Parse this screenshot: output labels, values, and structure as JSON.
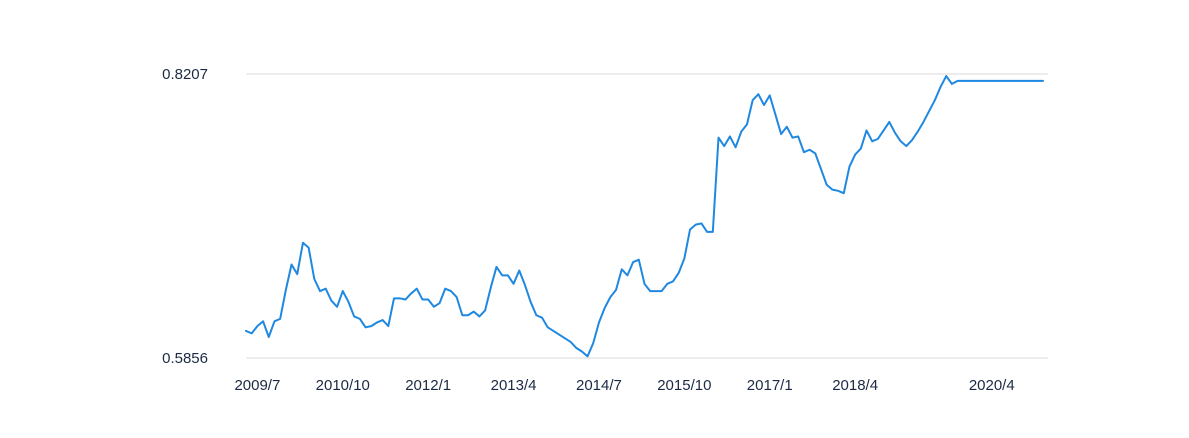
{
  "chart_data": {
    "type": "line",
    "title": "",
    "xlabel": "",
    "ylabel": "",
    "grid": true,
    "legend": "none",
    "ylim": [
      0.5856,
      0.8207
    ],
    "xlim": [
      "2009-05",
      "2021-01"
    ],
    "y_ticks": [
      {
        "value": 0.5856,
        "label": "0.5856"
      },
      {
        "value": 0.8207,
        "label": "0.8207"
      }
    ],
    "x_ticks": [
      {
        "value": "2009-07",
        "label": "2009/7"
      },
      {
        "value": "2010-10",
        "label": "2010/10"
      },
      {
        "value": "2012-01",
        "label": "2012/1"
      },
      {
        "value": "2013-04",
        "label": "2013/4"
      },
      {
        "value": "2014-07",
        "label": "2014/7"
      },
      {
        "value": "2015-10",
        "label": "2015/10"
      },
      {
        "value": "2017-01",
        "label": "2017/1"
      },
      {
        "value": "2018-04",
        "label": "2018/4"
      },
      {
        "value": "2020-04",
        "label": "2020/4"
      }
    ],
    "series": [
      {
        "color": "#1f88e0",
        "points": [
          [
            "2009-05",
            0.608
          ],
          [
            "2009-06",
            0.606
          ],
          [
            "2009-07",
            0.612
          ],
          [
            "2009-08",
            0.616
          ],
          [
            "2009-09",
            0.603
          ],
          [
            "2009-10",
            0.616
          ],
          [
            "2009-11",
            0.618
          ],
          [
            "2009-12",
            0.642
          ],
          [
            "2010-01",
            0.663
          ],
          [
            "2010-02",
            0.655
          ],
          [
            "2010-03",
            0.681
          ],
          [
            "2010-04",
            0.677
          ],
          [
            "2010-05",
            0.651
          ],
          [
            "2010-06",
            0.641
          ],
          [
            "2010-07",
            0.643
          ],
          [
            "2010-08",
            0.633
          ],
          [
            "2010-09",
            0.628
          ],
          [
            "2010-10",
            0.641
          ],
          [
            "2010-11",
            0.632
          ],
          [
            "2010-12",
            0.62
          ],
          [
            "2011-01",
            0.618
          ],
          [
            "2011-02",
            0.611
          ],
          [
            "2011-03",
            0.612
          ],
          [
            "2011-04",
            0.615
          ],
          [
            "2011-05",
            0.617
          ],
          [
            "2011-06",
            0.612
          ],
          [
            "2011-07",
            0.635
          ],
          [
            "2011-08",
            0.635
          ],
          [
            "2011-09",
            0.634
          ],
          [
            "2011-10",
            0.639
          ],
          [
            "2011-11",
            0.643
          ],
          [
            "2011-12",
            0.634
          ],
          [
            "2012-01",
            0.634
          ],
          [
            "2012-02",
            0.628
          ],
          [
            "2012-03",
            0.631
          ],
          [
            "2012-04",
            0.643
          ],
          [
            "2012-05",
            0.641
          ],
          [
            "2012-06",
            0.636
          ],
          [
            "2012-07",
            0.621
          ],
          [
            "2012-08",
            0.621
          ],
          [
            "2012-09",
            0.624
          ],
          [
            "2012-10",
            0.62
          ],
          [
            "2012-11",
            0.625
          ],
          [
            "2012-12",
            0.644
          ],
          [
            "2013-01",
            0.661
          ],
          [
            "2013-02",
            0.654
          ],
          [
            "2013-03",
            0.654
          ],
          [
            "2013-04",
            0.647
          ],
          [
            "2013-05",
            0.658
          ],
          [
            "2013-06",
            0.646
          ],
          [
            "2013-07",
            0.632
          ],
          [
            "2013-08",
            0.621
          ],
          [
            "2013-09",
            0.619
          ],
          [
            "2013-10",
            0.611
          ],
          [
            "2013-11",
            0.608
          ],
          [
            "2013-12",
            0.605
          ],
          [
            "2014-01",
            0.602
          ],
          [
            "2014-02",
            0.599
          ],
          [
            "2014-03",
            0.594
          ],
          [
            "2014-04",
            0.591
          ],
          [
            "2014-05",
            0.587
          ],
          [
            "2014-06",
            0.598
          ],
          [
            "2014-07",
            0.615
          ],
          [
            "2014-08",
            0.627
          ],
          [
            "2014-09",
            0.636
          ],
          [
            "2014-10",
            0.642
          ],
          [
            "2014-11",
            0.659
          ],
          [
            "2014-12",
            0.654
          ],
          [
            "2015-01",
            0.665
          ],
          [
            "2015-02",
            0.667
          ],
          [
            "2015-03",
            0.647
          ],
          [
            "2015-04",
            0.641
          ],
          [
            "2015-05",
            0.641
          ],
          [
            "2015-06",
            0.641
          ],
          [
            "2015-07",
            0.647
          ],
          [
            "2015-08",
            0.649
          ],
          [
            "2015-09",
            0.656
          ],
          [
            "2015-10",
            0.668
          ],
          [
            "2015-11",
            0.692
          ],
          [
            "2015-12",
            0.696
          ],
          [
            "2016-01",
            0.697
          ],
          [
            "2016-02",
            0.69
          ],
          [
            "2016-03",
            0.69
          ],
          [
            "2016-04",
            0.768
          ],
          [
            "2016-05",
            0.761
          ],
          [
            "2016-06",
            0.769
          ],
          [
            "2016-07",
            0.76
          ],
          [
            "2016-08",
            0.773
          ],
          [
            "2016-09",
            0.779
          ],
          [
            "2016-10",
            0.799
          ],
          [
            "2016-11",
            0.804
          ],
          [
            "2016-12",
            0.795
          ],
          [
            "2017-01",
            0.803
          ],
          [
            "2017-02",
            0.787
          ],
          [
            "2017-03",
            0.771
          ],
          [
            "2017-04",
            0.777
          ],
          [
            "2017-05",
            0.768
          ],
          [
            "2017-06",
            0.769
          ],
          [
            "2017-07",
            0.756
          ],
          [
            "2017-08",
            0.758
          ],
          [
            "2017-09",
            0.755
          ],
          [
            "2017-10",
            0.742
          ],
          [
            "2017-11",
            0.729
          ],
          [
            "2017-12",
            0.725
          ],
          [
            "2018-01",
            0.724
          ],
          [
            "2018-02",
            0.722
          ],
          [
            "2018-03",
            0.744
          ],
          [
            "2018-04",
            0.754
          ],
          [
            "2018-05",
            0.759
          ],
          [
            "2018-06",
            0.774
          ],
          [
            "2018-07",
            0.765
          ],
          [
            "2018-08",
            0.767
          ],
          [
            "2018-09",
            0.774
          ],
          [
            "2018-10",
            0.781
          ],
          [
            "2018-11",
            0.772
          ],
          [
            "2018-12",
            0.765
          ],
          [
            "2019-01",
            0.761
          ],
          [
            "2019-02",
            0.766
          ],
          [
            "2019-03",
            0.773
          ],
          [
            "2019-04",
            0.781
          ],
          [
            "2019-05",
            0.79
          ],
          [
            "2019-06",
            0.799
          ],
          [
            "2019-07",
            0.81
          ],
          [
            "2019-08",
            0.819
          ],
          [
            "2019-09",
            0.8125
          ],
          [
            "2019-10",
            0.815
          ],
          [
            "2019-11",
            0.815
          ],
          [
            "2019-12",
            0.815
          ],
          [
            "2020-01",
            0.815
          ],
          [
            "2020-02",
            0.815
          ],
          [
            "2020-03",
            0.815
          ],
          [
            "2020-04",
            0.815
          ],
          [
            "2020-05",
            0.815
          ],
          [
            "2020-06",
            0.815
          ],
          [
            "2020-07",
            0.815
          ],
          [
            "2020-08",
            0.815
          ],
          [
            "2020-09",
            0.815
          ],
          [
            "2020-10",
            0.815
          ],
          [
            "2020-11",
            0.815
          ],
          [
            "2020-12",
            0.815
          ],
          [
            "2021-01",
            0.815
          ]
        ]
      }
    ]
  }
}
